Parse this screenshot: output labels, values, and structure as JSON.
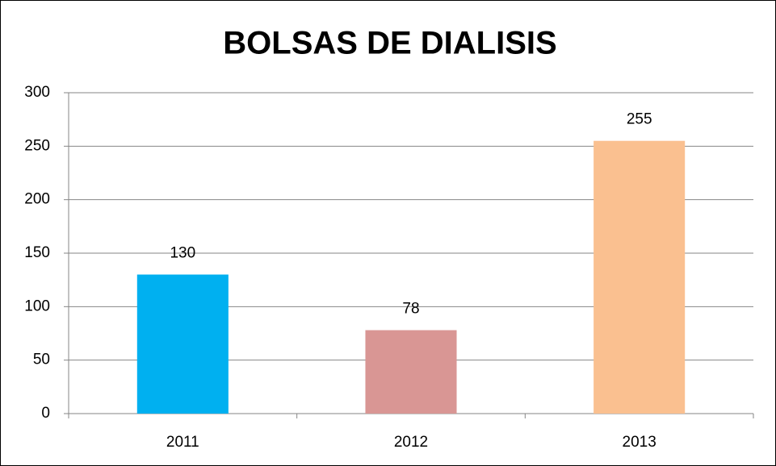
{
  "chart_data": {
    "type": "bar",
    "title": "BOLSAS DE DIALISIS",
    "categories": [
      "2011",
      "2012",
      "2013"
    ],
    "values": [
      130,
      78,
      255
    ],
    "colors": [
      "#00b0f0",
      "#d99694",
      "#fac090"
    ],
    "ylim": [
      0,
      300
    ],
    "yticks": [
      0,
      50,
      100,
      150,
      200,
      250,
      300
    ],
    "grid": true
  }
}
